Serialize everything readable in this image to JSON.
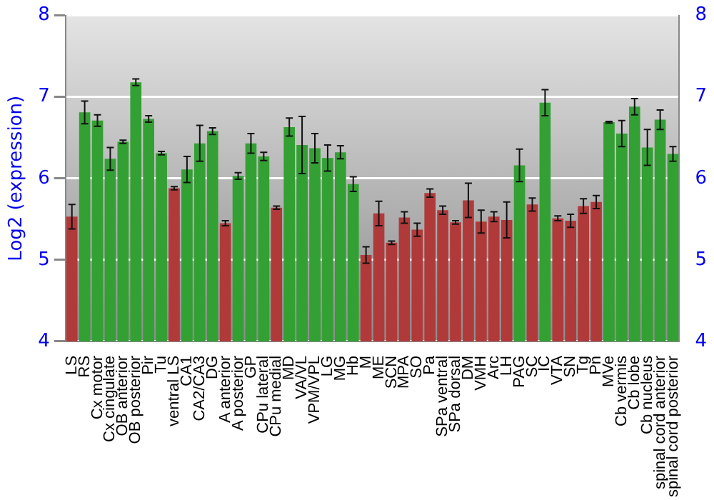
{
  "chart_data": {
    "type": "bar",
    "ylabel": "Log2 (expression)",
    "categories": [
      "LS",
      "RS",
      "Cx motor",
      "Cx cingulate",
      "OB anterior",
      "OB posterior",
      "Pir",
      "Tu",
      "ventral LS",
      "CA1",
      "CA2/CA3",
      "DG",
      "A anterior",
      "A posterior",
      "GP",
      "CPu lateral",
      "CPu medial",
      "MD",
      "VA/VL",
      "VPM/VPL",
      "LG",
      "MG",
      "Hb",
      "M",
      "ME",
      "SCN",
      "MPA",
      "SO",
      "Pa",
      "SPa ventral",
      "SPa dorsal",
      "DM",
      "VMH",
      "Arc",
      "LH",
      "PAG",
      "SC",
      "IC",
      "VTA",
      "SN",
      "Tg",
      "Pn",
      "MVe",
      "Cb vermis",
      "Cb lobe",
      "Cb nucleus",
      "spinal cord anterior",
      "spinal cord posterior"
    ],
    "values": [
      5.53,
      6.81,
      6.71,
      6.24,
      6.45,
      7.18,
      6.73,
      6.31,
      5.88,
      6.11,
      6.43,
      6.58,
      5.45,
      6.03,
      6.43,
      6.27,
      5.64,
      6.63,
      6.41,
      6.37,
      6.25,
      6.32,
      5.93,
      5.06,
      5.57,
      5.21,
      5.52,
      5.37,
      5.82,
      5.61,
      5.46,
      5.73,
      5.47,
      5.53,
      5.49,
      6.16,
      5.68,
      6.93,
      5.51,
      5.48,
      5.66,
      5.71,
      6.69,
      6.55,
      6.88,
      6.38,
      6.72,
      6.3
    ],
    "errors": [
      0.15,
      0.14,
      0.07,
      0.14,
      0.02,
      0.04,
      0.04,
      0.02,
      0.02,
      0.16,
      0.22,
      0.04,
      0.03,
      0.04,
      0.12,
      0.05,
      0.02,
      0.11,
      0.35,
      0.18,
      0.16,
      0.08,
      0.09,
      0.1,
      0.15,
      0.02,
      0.07,
      0.08,
      0.05,
      0.05,
      0.02,
      0.21,
      0.14,
      0.06,
      0.22,
      0.2,
      0.08,
      0.16,
      0.03,
      0.08,
      0.09,
      0.08,
      0.01,
      0.16,
      0.1,
      0.22,
      0.12,
      0.09
    ],
    "colors": [
      "#b03a3a",
      "#33a033",
      "#33a033",
      "#33a033",
      "#33a033",
      "#33a033",
      "#33a033",
      "#33a033",
      "#b03a3a",
      "#33a033",
      "#33a033",
      "#33a033",
      "#b03a3a",
      "#33a033",
      "#33a033",
      "#33a033",
      "#b03a3a",
      "#33a033",
      "#33a033",
      "#33a033",
      "#33a033",
      "#33a033",
      "#33a033",
      "#b03a3a",
      "#b03a3a",
      "#b03a3a",
      "#b03a3a",
      "#b03a3a",
      "#b03a3a",
      "#b03a3a",
      "#b03a3a",
      "#b03a3a",
      "#b03a3a",
      "#b03a3a",
      "#b03a3a",
      "#33a033",
      "#b03a3a",
      "#33a033",
      "#b03a3a",
      "#b03a3a",
      "#b03a3a",
      "#b03a3a",
      "#33a033",
      "#33a033",
      "#33a033",
      "#33a033",
      "#33a033",
      "#33a033"
    ],
    "ylim": [
      4,
      8
    ],
    "yticks": [
      4,
      5,
      6,
      7,
      8
    ],
    "y2lim": [
      4,
      8
    ],
    "y2ticks": [
      4,
      5,
      6,
      7,
      8
    ],
    "grid": "y"
  }
}
